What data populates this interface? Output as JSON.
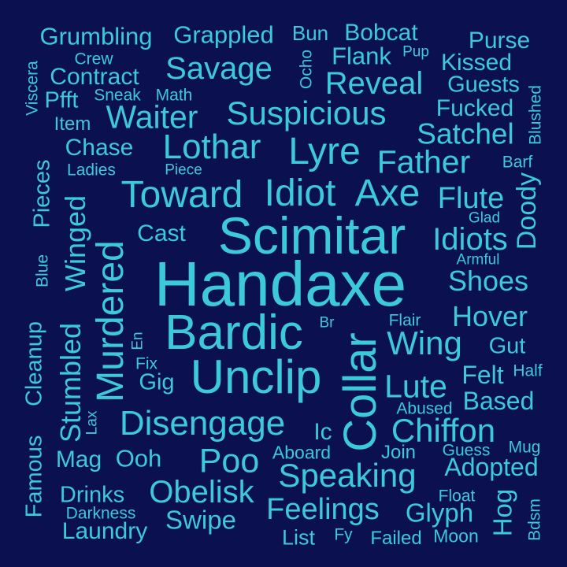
{
  "colors": {
    "background": "#0b1150",
    "text": "#3cc9d9"
  },
  "words": {
    "grumbling": "Grumbling",
    "grappled": "Grappled",
    "bun": "Bun",
    "bobcat": "Bobcat",
    "purse": "Purse",
    "crew": "Crew",
    "ocho": "Ocho",
    "flank": "Flank",
    "pup": "Pup",
    "kissed": "Kissed",
    "viscera": "Viscera",
    "contract": "Contract",
    "savage": "Savage",
    "reveal": "Reveal",
    "guests": "Guests",
    "pfft": "Pfft",
    "sneak": "Sneak",
    "math": "Math",
    "fucked": "Fucked",
    "blushed": "Blushed",
    "item": "Item",
    "waiter": "Waiter",
    "suspicious": "Suspicious",
    "satchel": "Satchel",
    "chase": "Chase",
    "lothar": "Lothar",
    "lyre": "Lyre",
    "father": "Father",
    "barf": "Barf",
    "ladies": "Ladies",
    "piece": "Piece",
    "pieces": "Pieces",
    "toward": "Toward",
    "idiot": "Idiot",
    "axe": "Axe",
    "flute": "Flute",
    "doody": "Doody",
    "glad": "Glad",
    "winged": "Winged",
    "cast": "Cast",
    "scimitar": "Scimitar",
    "idiots": "Idiots",
    "armful": "Armful",
    "murdered": "Murdered",
    "blue": "Blue",
    "handaxe": "Handaxe",
    "shoes": "Shoes",
    "hover": "Hover",
    "cleanup": "Cleanup",
    "bardic": "Bardic",
    "br": "Br",
    "flair": "Flair",
    "stumbled": "Stumbled",
    "en": "En",
    "collar": "Collar",
    "wing": "Wing",
    "gut": "Gut",
    "fix": "Fix",
    "unclip": "Unclip",
    "felt": "Felt",
    "half": "Half",
    "gig": "Gig",
    "lute": "Lute",
    "famous": "Famous",
    "abused": "Abused",
    "based": "Based",
    "lax": "Lax",
    "disengage": "Disengage",
    "ic": "Ic",
    "chiffon": "Chiffon",
    "mag": "Mag",
    "ooh": "Ooh",
    "aboard": "Aboard",
    "join": "Join",
    "guess": "Guess",
    "mug": "Mug",
    "poo": "Poo",
    "adopted": "Adopted",
    "speaking": "Speaking",
    "drinks": "Drinks",
    "obelisk": "Obelisk",
    "float": "Float",
    "hog": "Hog",
    "darkness": "Darkness",
    "feelings": "Feelings",
    "glyph": "Glyph",
    "bdsm": "Bdsm",
    "swipe": "Swipe",
    "laundry": "Laundry",
    "list": "List",
    "fy": "Fy",
    "failed": "Failed",
    "moon": "Moon"
  }
}
